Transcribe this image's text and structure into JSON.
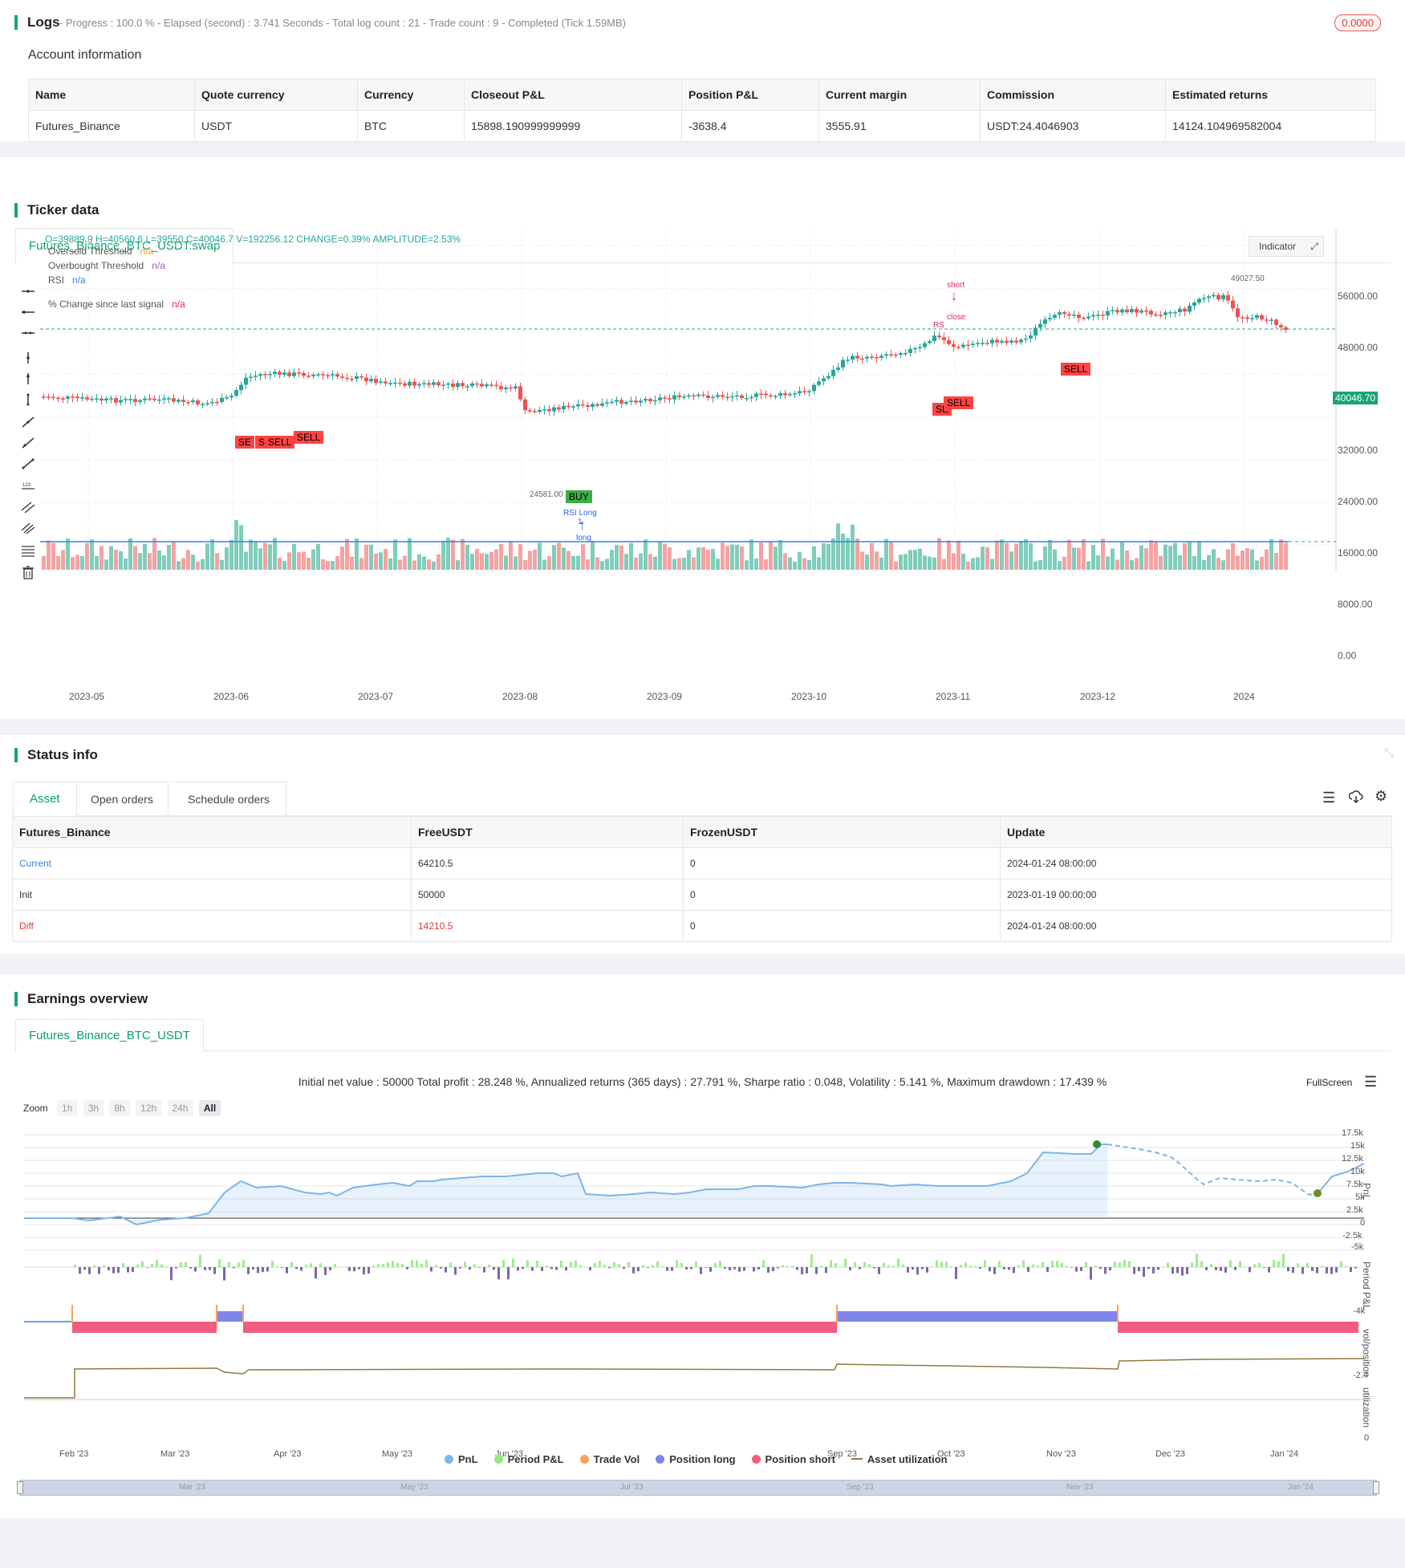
{
  "logs": {
    "title": "Logs",
    "subtitle": "- Progress : 100.0 % - Elapsed (second) : 3.741 Seconds - Total log count : 21 - Trade count : 9 - Completed (Tick 1.59MB)",
    "badge": "0.0000",
    "account_title": "Account information",
    "columns": [
      "Name",
      "Quote currency",
      "Currency",
      "Closeout P&L",
      "Position P&L",
      "Current margin",
      "Commission",
      "Estimated returns"
    ],
    "row": [
      "Futures_Binance",
      "USDT",
      "BTC",
      "15898.190999999999",
      "-3638.4",
      "3555.91",
      "USDT:24.4046903",
      "14124.104969582004"
    ]
  },
  "ticker": {
    "title": "Ticker data",
    "tab": "Futures_Binance_BTC_USDT:swap",
    "ohlc": "O=39889.9 H=40560.6 L=39550 C=40046.7 V=192256.12 CHANGE=0.39% AMPLITUDE=2.53%",
    "legend": [
      {
        "label": "Oversold Threshold",
        "value": "n/a",
        "color": "#f0a020"
      },
      {
        "label": "Overbought Threshold",
        "value": "n/a",
        "color": "#9b59b6"
      },
      {
        "label": "RSI",
        "value": "n/a",
        "color": "#2e86de"
      }
    ],
    "pct_label": "% Change since last signal",
    "pct_value": "n/a",
    "indicator_btn": "Indicator",
    "current_price": "40046.70",
    "y_ticks": [
      "56000.00",
      "48000.00",
      "32000.00",
      "24000.00",
      "16000.00",
      "8000.00",
      "0.00"
    ],
    "x_ticks": [
      "2023-05",
      "2023-06",
      "2023-07",
      "2023-08",
      "2023-09",
      "2023-10",
      "2023-11",
      "2023-12",
      "2024"
    ],
    "annotations": {
      "high": "49027.50",
      "low": "24581.00",
      "short": "short",
      "close": "close",
      "long": "long",
      "rsi_long": "RSI Long",
      "one": "1",
      "sell": "SELL",
      "buy": "BUY",
      "se": "SE",
      "s": "S",
      "rs": "RS"
    },
    "colors": {
      "up": "#26a69a",
      "down": "#ef5350",
      "dashed": "#26a69a"
    }
  },
  "status": {
    "title": "Status info",
    "tabs": [
      "Asset",
      "Open orders",
      "Schedule orders"
    ],
    "columns": [
      "Futures_Binance",
      "FreeUSDT",
      "FrozenUSDT",
      "Update"
    ],
    "rows": [
      [
        "Current",
        "64210.5",
        "0",
        "2024-01-24 08:00:00"
      ],
      [
        "Init",
        "50000",
        "0",
        "2023-01-19 00:00:00"
      ],
      [
        "Diff",
        "14210.5",
        "0",
        "2024-01-24 08:00:00"
      ]
    ]
  },
  "earnings": {
    "title": "Earnings overview",
    "tab": "Futures_Binance_BTC_USDT",
    "summary": "Initial net value : 50000 Total profit : 28.248 %, Annualized returns (365 days) : 27.791 %, Sharpe ratio : 0.048, Volatility : 5.141 %, Maximum drawdown : 17.439 %",
    "fullscreen": "FullScreen",
    "zoom_label": "Zoom",
    "zoom_buttons": [
      "1h",
      "3h",
      "8h",
      "12h",
      "24h",
      "All"
    ],
    "pnl_ticks": [
      "17.5k",
      "15k",
      "12.5k",
      "10k",
      "7.5k",
      "5k",
      "2.5k",
      "0",
      "-2.5k",
      "-5k"
    ],
    "period_tick": "-4k",
    "pos_tick": "-2.4",
    "util_tick": "0",
    "axis_titles": [
      "PnL",
      "Period P&L",
      "vol/position",
      "utilization"
    ],
    "x_ticks": [
      "Feb '23",
      "Mar '23",
      "Apr '23",
      "May '23",
      "Jun '23",
      "Jul '23",
      "Aug '23",
      "Sep '23",
      "Oct '23",
      "Nov '23",
      "Dec '23",
      "Jan '24"
    ],
    "nav_ticks": [
      "Mar '23",
      "May '23",
      "Jul '23",
      "Sep '23",
      "Nov '23",
      "Jan '24"
    ],
    "legend": [
      {
        "label": "PnL",
        "color": "#7cb5ec"
      },
      {
        "label": "Period P&L",
        "color": "#90ed7d"
      },
      {
        "label": "Trade Vol",
        "color": "#f7a35c"
      },
      {
        "label": "Position long",
        "color": "#8085e9"
      },
      {
        "label": "Position short",
        "color": "#f15c80"
      },
      {
        "label": "Asset utilization",
        "color": "#8d7b3a"
      }
    ]
  }
}
